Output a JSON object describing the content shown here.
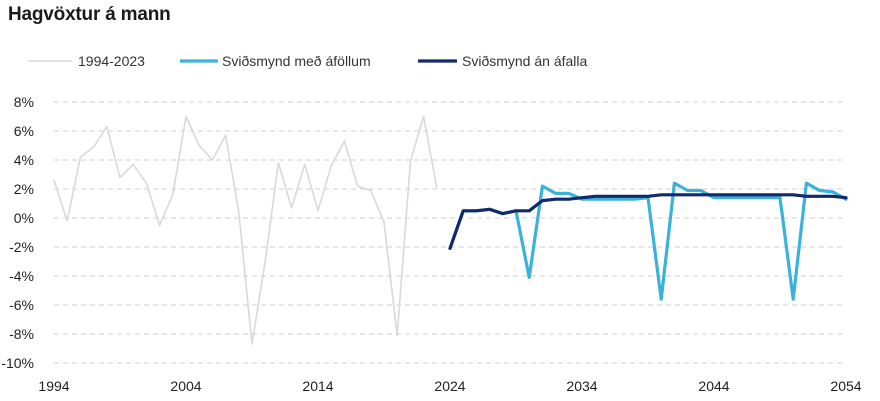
{
  "title": "Hagvöxtur á mann",
  "chart_data": {
    "type": "line",
    "title": "Hagvöxtur á mann",
    "xlabel": "",
    "ylabel": "",
    "xlim": [
      1994,
      2054
    ],
    "ylim": [
      -10,
      8
    ],
    "y_ticks": [
      8,
      6,
      4,
      2,
      0,
      -2,
      -4,
      -6,
      -8,
      -10
    ],
    "y_tick_labels": [
      "8%",
      "6%",
      "4%",
      "2%",
      "0%",
      "-2%",
      "-4%",
      "-6%",
      "-8%",
      "-10%"
    ],
    "x_ticks": [
      1994,
      2004,
      2014,
      2024,
      2034,
      2044,
      2054
    ],
    "x_tick_labels": [
      "1994",
      "2004",
      "2014",
      "2024",
      "2034",
      "2044",
      "2054"
    ],
    "grid": "horizontal dashed",
    "legend_position": "top",
    "series": [
      {
        "name": "1994-2023",
        "color": "#d9d9d9",
        "x": [
          1994,
          1995,
          1996,
          1997,
          1998,
          1999,
          2000,
          2001,
          2002,
          2003,
          2004,
          2005,
          2006,
          2007,
          2008,
          2009,
          2010,
          2011,
          2012,
          2013,
          2014,
          2015,
          2016,
          2017,
          2018,
          2019,
          2020,
          2021,
          2022,
          2023
        ],
        "y": [
          2.6,
          -0.2,
          4.2,
          4.9,
          6.3,
          2.8,
          3.7,
          2.4,
          -0.5,
          1.6,
          7.0,
          5.0,
          4.0,
          5.7,
          0.4,
          -8.7,
          -3.0,
          3.8,
          0.7,
          3.7,
          0.5,
          3.6,
          5.3,
          2.2,
          1.9,
          -0.3,
          -8.1,
          3.9,
          7.0,
          2.1
        ]
      },
      {
        "name": "Sviðsmynd með áföllum",
        "color": "#3bb2d9",
        "x": [
          2024,
          2025,
          2026,
          2027,
          2028,
          2029,
          2030,
          2031,
          2032,
          2033,
          2034,
          2035,
          2036,
          2037,
          2038,
          2039,
          2040,
          2041,
          2042,
          2043,
          2044,
          2045,
          2046,
          2047,
          2048,
          2049,
          2050,
          2051,
          2052,
          2053,
          2054
        ],
        "y": [
          -2.1,
          0.5,
          0.5,
          0.6,
          0.3,
          0.5,
          -4.1,
          2.2,
          1.7,
          1.7,
          1.3,
          1.3,
          1.3,
          1.3,
          1.3,
          1.4,
          -5.6,
          2.4,
          1.9,
          1.9,
          1.4,
          1.4,
          1.4,
          1.4,
          1.4,
          1.4,
          -5.6,
          2.4,
          1.9,
          1.8,
          1.3
        ]
      },
      {
        "name": "Sviðsmynd án áfalla",
        "color": "#12296b",
        "x": [
          2024,
          2025,
          2026,
          2027,
          2028,
          2029,
          2030,
          2031,
          2032,
          2033,
          2034,
          2035,
          2036,
          2037,
          2038,
          2039,
          2040,
          2041,
          2042,
          2043,
          2044,
          2045,
          2046,
          2047,
          2048,
          2049,
          2050,
          2051,
          2052,
          2053,
          2054
        ],
        "y": [
          -2.1,
          0.5,
          0.5,
          0.6,
          0.3,
          0.5,
          0.5,
          1.2,
          1.3,
          1.3,
          1.4,
          1.5,
          1.5,
          1.5,
          1.5,
          1.5,
          1.6,
          1.6,
          1.6,
          1.6,
          1.6,
          1.6,
          1.6,
          1.6,
          1.6,
          1.6,
          1.6,
          1.5,
          1.5,
          1.5,
          1.4
        ]
      }
    ]
  }
}
